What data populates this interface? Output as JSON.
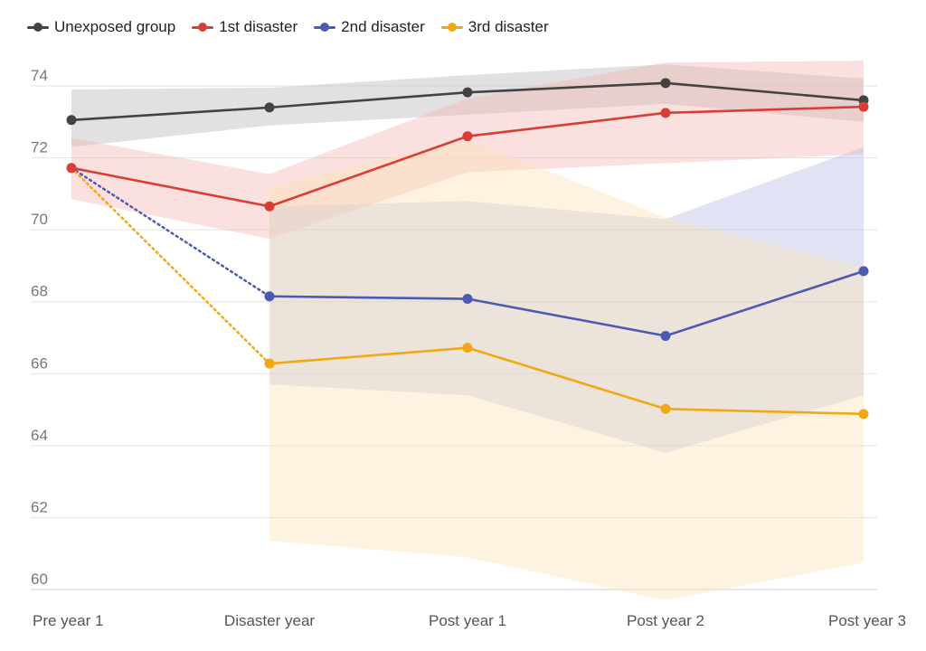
{
  "chart_data": {
    "type": "line",
    "title": "",
    "xlabel": "",
    "ylabel": "",
    "categories": [
      "Pre year 1",
      "Disaster year",
      "Post year 1",
      "Post year 2",
      "Post year 3"
    ],
    "ylim": [
      60,
      74
    ],
    "yticks": [
      60,
      62,
      64,
      66,
      68,
      70,
      72,
      74
    ],
    "grid": true,
    "legend_position": "top-left",
    "series": [
      {
        "name": "Unexposed group",
        "color": "#434343",
        "band_color": "#bdbdbd",
        "values": [
          73.05,
          73.4,
          73.82,
          74.08,
          73.6
        ],
        "lower": [
          72.3,
          72.9,
          73.2,
          73.5,
          73.0
        ],
        "upper": [
          73.9,
          73.95,
          74.3,
          74.6,
          74.2
        ],
        "dashed_segments_from_start": 0
      },
      {
        "name": "1st disaster",
        "color": "#d93d35",
        "band_color": "#f4b6b2",
        "values": [
          71.72,
          70.65,
          72.6,
          73.25,
          73.42
        ],
        "lower": [
          70.85,
          69.75,
          71.6,
          71.85,
          72.1
        ],
        "upper": [
          72.55,
          71.55,
          73.65,
          74.65,
          74.7
        ],
        "dashed_segments_from_start": 0
      },
      {
        "name": "2nd disaster",
        "color": "#4b5ab3",
        "band_color": "#b7bde6",
        "values": [
          71.72,
          68.15,
          68.08,
          67.05,
          68.85
        ],
        "lower": [
          null,
          65.7,
          65.4,
          63.8,
          65.4
        ],
        "upper": [
          null,
          70.65,
          70.8,
          70.3,
          72.3
        ],
        "dashed_segments_from_start": 1
      },
      {
        "name": "3rd disaster",
        "color": "#f2a814",
        "band_color": "#fde3b4",
        "values": [
          71.72,
          66.28,
          66.72,
          65.02,
          64.88
        ],
        "lower": [
          null,
          61.35,
          60.9,
          59.7,
          60.75
        ],
        "upper": [
          null,
          71.2,
          72.5,
          70.35,
          68.95
        ],
        "dashed_segments_from_start": 1
      }
    ]
  }
}
